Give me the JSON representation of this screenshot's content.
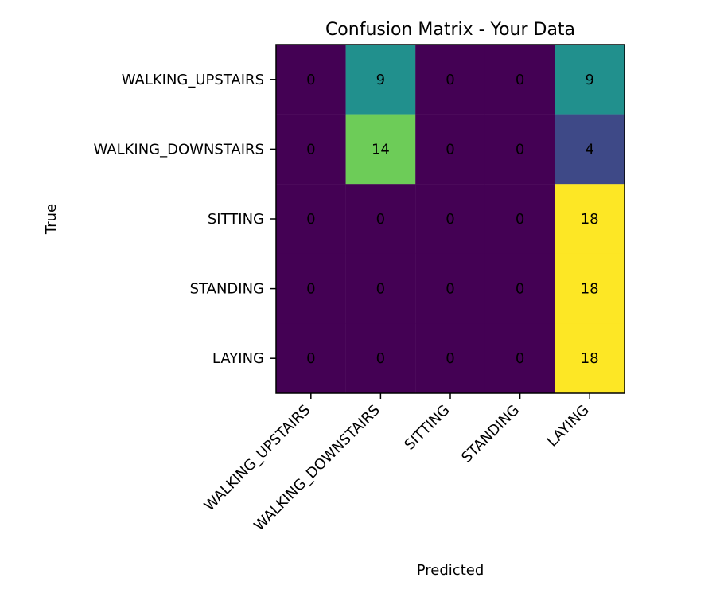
{
  "chart_data": {
    "type": "heatmap",
    "title": "Confusion Matrix - Your Data",
    "xlabel": "Predicted",
    "ylabel": "True",
    "x_categories": [
      "WALKING_UPSTAIRS",
      "WALKING_DOWNSTAIRS",
      "SITTING",
      "STANDING",
      "LAYING"
    ],
    "y_categories": [
      "WALKING_UPSTAIRS",
      "WALKING_DOWNSTAIRS",
      "SITTING",
      "STANDING",
      "LAYING"
    ],
    "values": [
      [
        0,
        9,
        0,
        0,
        9
      ],
      [
        0,
        14,
        0,
        0,
        4
      ],
      [
        0,
        0,
        0,
        0,
        18
      ],
      [
        0,
        0,
        0,
        0,
        18
      ],
      [
        0,
        0,
        0,
        0,
        18
      ]
    ],
    "colormap": "viridis",
    "value_range": [
      0,
      18
    ],
    "cell_text_color": "#000000",
    "grid": false
  }
}
